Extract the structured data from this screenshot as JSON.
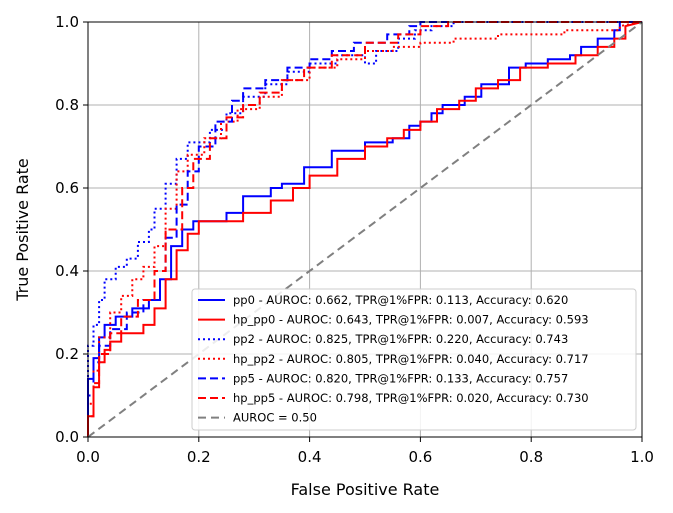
{
  "chart_data": {
    "type": "line",
    "title": "",
    "xlabel": "False Positive Rate",
    "ylabel": "True Positive Rate",
    "xlim": [
      0,
      1
    ],
    "ylim": [
      0,
      1
    ],
    "xticks": [
      "0.0",
      "0.2",
      "0.4",
      "0.6",
      "0.8",
      "1.0"
    ],
    "yticks": [
      "0.0",
      "0.2",
      "0.4",
      "0.6",
      "0.8",
      "1.0"
    ],
    "grid": true,
    "legend_position": "lower-right",
    "series": [
      {
        "name": "pp0 - AUROC: 0.662, TPR@1%FPR: 0.113, Accuracy: 0.620",
        "color": "#0000ff",
        "dash": "solid",
        "x": [
          0,
          0,
          0.01,
          0.01,
          0.02,
          0.02,
          0.03,
          0.03,
          0.05,
          0.05,
          0.08,
          0.08,
          0.11,
          0.11,
          0.13,
          0.13,
          0.15,
          0.15,
          0.17,
          0.17,
          0.19,
          0.19,
          0.25,
          0.25,
          0.28,
          0.28,
          0.33,
          0.33,
          0.35,
          0.35,
          0.39,
          0.39,
          0.44,
          0.44,
          0.5,
          0.5,
          0.55,
          0.55,
          0.58,
          0.58,
          0.6,
          0.6,
          0.62,
          0.62,
          0.64,
          0.64,
          0.68,
          0.68,
          0.71,
          0.71,
          0.76,
          0.76,
          0.79,
          0.79,
          0.83,
          0.83,
          0.87,
          0.87,
          0.89,
          0.89,
          0.92,
          0.92,
          0.95,
          0.95,
          0.96,
          0.96,
          1.0
        ],
        "y": [
          0,
          0.14,
          0.14,
          0.19,
          0.19,
          0.24,
          0.24,
          0.27,
          0.27,
          0.29,
          0.29,
          0.31,
          0.31,
          0.33,
          0.33,
          0.38,
          0.38,
          0.46,
          0.46,
          0.5,
          0.5,
          0.52,
          0.52,
          0.54,
          0.54,
          0.58,
          0.58,
          0.6,
          0.6,
          0.61,
          0.61,
          0.65,
          0.65,
          0.69,
          0.69,
          0.71,
          0.71,
          0.72,
          0.72,
          0.75,
          0.75,
          0.76,
          0.76,
          0.78,
          0.78,
          0.8,
          0.8,
          0.82,
          0.82,
          0.85,
          0.85,
          0.89,
          0.89,
          0.9,
          0.9,
          0.91,
          0.91,
          0.92,
          0.92,
          0.94,
          0.94,
          0.96,
          0.96,
          0.98,
          0.98,
          1.0,
          1.0
        ]
      },
      {
        "name": "hp_pp0 - AUROC: 0.643, TPR@1%FPR: 0.007, Accuracy: 0.593",
        "color": "#ff0000",
        "dash": "solid",
        "x": [
          0,
          0,
          0.01,
          0.01,
          0.02,
          0.02,
          0.03,
          0.03,
          0.04,
          0.04,
          0.06,
          0.06,
          0.1,
          0.1,
          0.12,
          0.12,
          0.14,
          0.14,
          0.16,
          0.16,
          0.18,
          0.18,
          0.2,
          0.2,
          0.28,
          0.28,
          0.33,
          0.33,
          0.37,
          0.37,
          0.4,
          0.4,
          0.45,
          0.45,
          0.5,
          0.5,
          0.54,
          0.54,
          0.57,
          0.57,
          0.6,
          0.6,
          0.63,
          0.63,
          0.67,
          0.67,
          0.7,
          0.7,
          0.74,
          0.74,
          0.78,
          0.78,
          0.83,
          0.83,
          0.88,
          0.88,
          0.92,
          0.92,
          0.95,
          0.95,
          0.97,
          0.97,
          1.0
        ],
        "y": [
          0,
          0.05,
          0.05,
          0.12,
          0.12,
          0.18,
          0.18,
          0.21,
          0.21,
          0.23,
          0.23,
          0.25,
          0.25,
          0.27,
          0.27,
          0.31,
          0.31,
          0.38,
          0.38,
          0.45,
          0.45,
          0.49,
          0.49,
          0.52,
          0.52,
          0.54,
          0.54,
          0.57,
          0.57,
          0.6,
          0.6,
          0.63,
          0.63,
          0.67,
          0.67,
          0.7,
          0.7,
          0.72,
          0.72,
          0.74,
          0.74,
          0.76,
          0.76,
          0.79,
          0.79,
          0.81,
          0.81,
          0.84,
          0.84,
          0.86,
          0.86,
          0.89,
          0.89,
          0.9,
          0.9,
          0.92,
          0.92,
          0.94,
          0.94,
          0.96,
          0.96,
          0.99,
          1.0
        ]
      },
      {
        "name": "pp2 - AUROC: 0.825, TPR@1%FPR: 0.220, Accuracy: 0.743",
        "color": "#0000ff",
        "dash": "dotted",
        "x": [
          0,
          0,
          0.01,
          0.01,
          0.02,
          0.02,
          0.03,
          0.03,
          0.05,
          0.05,
          0.07,
          0.07,
          0.09,
          0.09,
          0.11,
          0.11,
          0.12,
          0.12,
          0.14,
          0.14,
          0.16,
          0.16,
          0.18,
          0.18,
          0.22,
          0.22,
          0.25,
          0.25,
          0.28,
          0.28,
          0.32,
          0.32,
          0.36,
          0.36,
          0.4,
          0.4,
          0.45,
          0.45,
          0.5,
          0.5,
          0.52,
          0.52,
          0.56,
          0.56,
          0.59,
          0.59,
          0.62,
          0.62,
          0.66,
          0.66,
          1.0
        ],
        "y": [
          0,
          0.22,
          0.22,
          0.27,
          0.27,
          0.33,
          0.33,
          0.38,
          0.38,
          0.41,
          0.41,
          0.43,
          0.43,
          0.47,
          0.47,
          0.5,
          0.5,
          0.55,
          0.55,
          0.61,
          0.61,
          0.67,
          0.67,
          0.71,
          0.71,
          0.74,
          0.74,
          0.78,
          0.78,
          0.82,
          0.82,
          0.85,
          0.85,
          0.88,
          0.88,
          0.9,
          0.9,
          0.92,
          0.92,
          0.9,
          0.9,
          0.93,
          0.93,
          0.96,
          0.96,
          0.98,
          0.98,
          0.99,
          0.99,
          1.0,
          1.0
        ]
      },
      {
        "name": "hp_pp2 - AUROC: 0.805, TPR@1%FPR: 0.040, Accuracy: 0.717",
        "color": "#ff0000",
        "dash": "dotted",
        "x": [
          0,
          0,
          0.01,
          0.01,
          0.02,
          0.02,
          0.04,
          0.04,
          0.06,
          0.06,
          0.08,
          0.08,
          0.1,
          0.1,
          0.12,
          0.12,
          0.14,
          0.14,
          0.16,
          0.16,
          0.18,
          0.18,
          0.21,
          0.21,
          0.24,
          0.24,
          0.27,
          0.27,
          0.31,
          0.31,
          0.35,
          0.35,
          0.4,
          0.4,
          0.45,
          0.45,
          0.5,
          0.5,
          0.55,
          0.55,
          0.6,
          0.6,
          0.66,
          0.66,
          0.74,
          0.74,
          0.86,
          0.86,
          0.96,
          0.96,
          1.0
        ],
        "y": [
          0,
          0.08,
          0.08,
          0.16,
          0.16,
          0.24,
          0.24,
          0.3,
          0.3,
          0.34,
          0.34,
          0.38,
          0.38,
          0.41,
          0.41,
          0.46,
          0.46,
          0.55,
          0.55,
          0.64,
          0.64,
          0.68,
          0.68,
          0.72,
          0.72,
          0.76,
          0.76,
          0.79,
          0.79,
          0.82,
          0.82,
          0.86,
          0.86,
          0.89,
          0.89,
          0.91,
          0.91,
          0.93,
          0.93,
          0.94,
          0.94,
          0.95,
          0.95,
          0.96,
          0.96,
          0.97,
          0.97,
          0.98,
          0.98,
          0.99,
          1.0
        ]
      },
      {
        "name": "pp5 - AUROC: 0.820, TPR@1%FPR: 0.133, Accuracy: 0.757",
        "color": "#0000ff",
        "dash": "dashed",
        "x": [
          0,
          0,
          0.01,
          0.01,
          0.02,
          0.02,
          0.04,
          0.04,
          0.07,
          0.07,
          0.1,
          0.1,
          0.12,
          0.12,
          0.14,
          0.14,
          0.16,
          0.16,
          0.18,
          0.18,
          0.2,
          0.2,
          0.23,
          0.23,
          0.26,
          0.26,
          0.28,
          0.28,
          0.32,
          0.32,
          0.36,
          0.36,
          0.4,
          0.4,
          0.44,
          0.44,
          0.48,
          0.48,
          0.54,
          0.54,
          0.58,
          0.58,
          0.6,
          0.6,
          0.65,
          0.65,
          1.0
        ],
        "y": [
          0,
          0.1,
          0.1,
          0.18,
          0.18,
          0.22,
          0.22,
          0.26,
          0.26,
          0.3,
          0.3,
          0.33,
          0.33,
          0.4,
          0.4,
          0.48,
          0.48,
          0.56,
          0.56,
          0.64,
          0.64,
          0.7,
          0.7,
          0.76,
          0.76,
          0.81,
          0.81,
          0.84,
          0.84,
          0.86,
          0.86,
          0.89,
          0.89,
          0.91,
          0.91,
          0.93,
          0.93,
          0.95,
          0.95,
          0.97,
          0.97,
          0.99,
          0.99,
          1.0,
          1.0,
          1.0,
          1.0
        ]
      },
      {
        "name": "hp_pp5 - AUROC: 0.798, TPR@1%FPR: 0.020, Accuracy: 0.730",
        "color": "#ff0000",
        "dash": "dashed",
        "x": [
          0,
          0,
          0.01,
          0.01,
          0.02,
          0.02,
          0.04,
          0.04,
          0.06,
          0.06,
          0.09,
          0.09,
          0.12,
          0.12,
          0.14,
          0.14,
          0.17,
          0.17,
          0.19,
          0.19,
          0.22,
          0.22,
          0.25,
          0.25,
          0.28,
          0.28,
          0.31,
          0.31,
          0.35,
          0.35,
          0.39,
          0.39,
          0.44,
          0.44,
          0.5,
          0.5,
          0.56,
          0.56,
          0.6,
          0.6,
          0.65,
          0.65,
          1.0
        ],
        "y": [
          0,
          0.05,
          0.05,
          0.13,
          0.13,
          0.2,
          0.2,
          0.25,
          0.25,
          0.29,
          0.29,
          0.33,
          0.33,
          0.4,
          0.4,
          0.5,
          0.5,
          0.6,
          0.6,
          0.67,
          0.67,
          0.72,
          0.72,
          0.77,
          0.77,
          0.8,
          0.8,
          0.83,
          0.83,
          0.86,
          0.86,
          0.89,
          0.89,
          0.92,
          0.92,
          0.95,
          0.95,
          0.97,
          0.97,
          0.99,
          0.99,
          1.0,
          1.0
        ]
      },
      {
        "name": "AUROC = 0.50",
        "color": "#808080",
        "dash": "diagonal",
        "x": [
          0,
          1
        ],
        "y": [
          0,
          1
        ]
      }
    ]
  }
}
